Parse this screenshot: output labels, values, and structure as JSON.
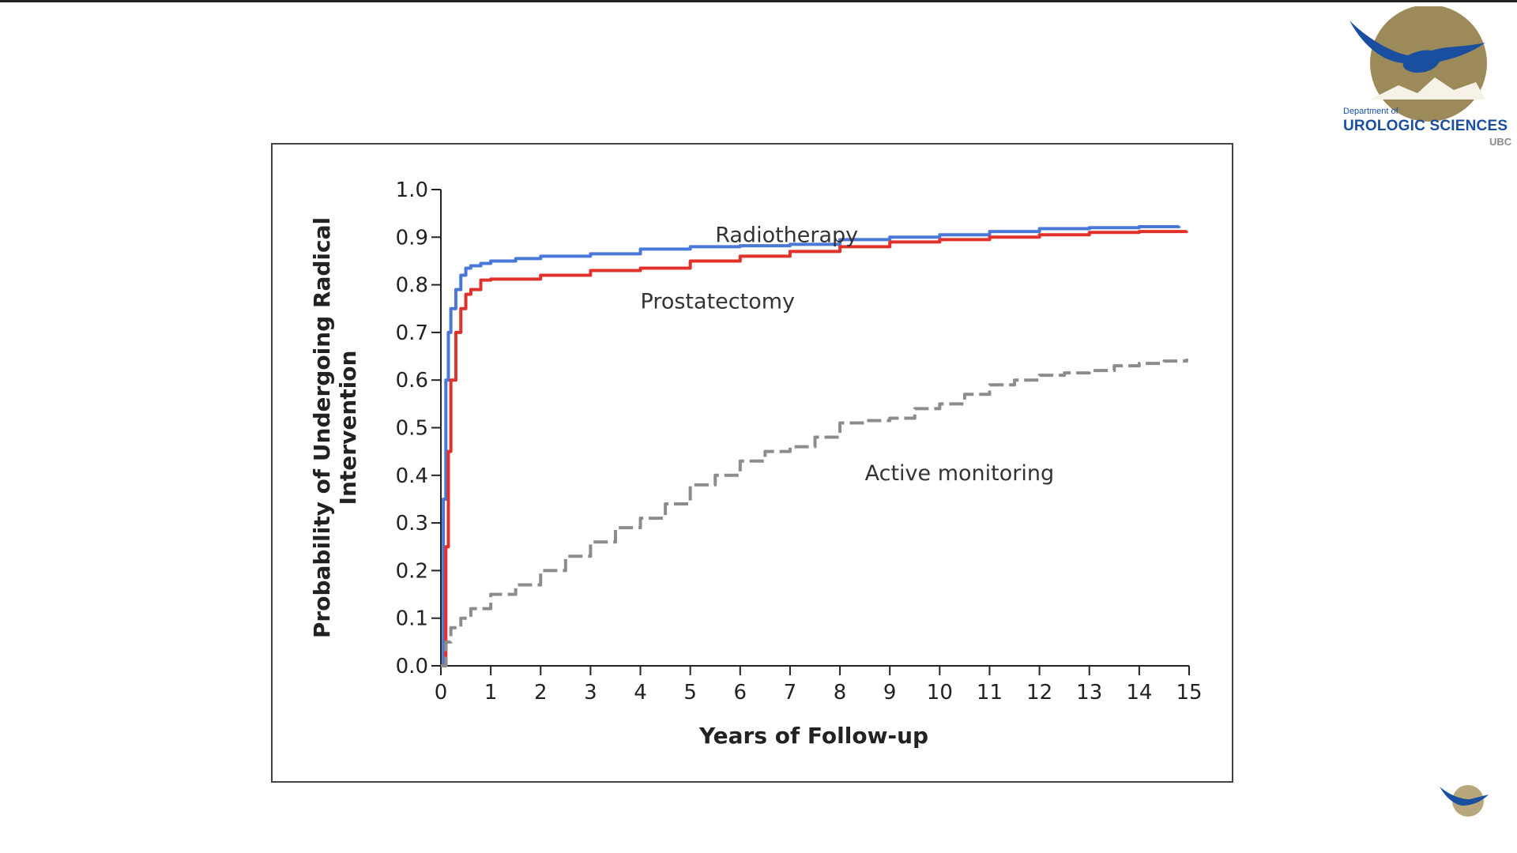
{
  "slide": {
    "logo": {
      "department": "Department of",
      "name": "UROLOGIC SCIENCES",
      "institution": "UBC",
      "colors": {
        "blue": "#1a4fa0",
        "gold": "#9c8a5a"
      },
      "icon": "eagle-icon"
    }
  },
  "chart_data": {
    "type": "line",
    "title": "",
    "xlabel": "Years of Follow-up",
    "ylabel": "Probability of Undergoing Radical Intervention",
    "xlim": [
      0,
      15
    ],
    "ylim": [
      0,
      1.0
    ],
    "x_ticks": [
      "0",
      "1",
      "2",
      "3",
      "4",
      "5",
      "6",
      "7",
      "8",
      "9",
      "10",
      "11",
      "12",
      "13",
      "14",
      "15"
    ],
    "y_ticks": [
      "0.0",
      "0.1",
      "0.2",
      "0.3",
      "0.4",
      "0.5",
      "0.6",
      "0.7",
      "0.8",
      "0.9",
      "1.0"
    ],
    "grid": false,
    "legend": "none",
    "series": [
      {
        "name": "Radiotherapy",
        "color": "#4a78d8",
        "style": "solid",
        "x": [
          0,
          0.05,
          0.1,
          0.15,
          0.2,
          0.3,
          0.4,
          0.5,
          0.6,
          0.8,
          1,
          1.5,
          2,
          3,
          4,
          5,
          6,
          7,
          8,
          9,
          10,
          11,
          12,
          13,
          14,
          14.8
        ],
        "y": [
          0,
          0.35,
          0.6,
          0.7,
          0.75,
          0.79,
          0.82,
          0.835,
          0.84,
          0.845,
          0.85,
          0.855,
          0.86,
          0.865,
          0.875,
          0.88,
          0.882,
          0.885,
          0.895,
          0.9,
          0.905,
          0.912,
          0.918,
          0.92,
          0.922,
          0.923
        ]
      },
      {
        "name": "Prostatectomy",
        "color": "#e0322a",
        "style": "solid",
        "x": [
          0,
          0.1,
          0.15,
          0.2,
          0.3,
          0.4,
          0.5,
          0.6,
          0.8,
          1,
          2,
          3,
          4,
          5,
          6,
          7,
          8,
          9,
          10,
          11,
          12,
          13,
          14,
          14.95
        ],
        "y": [
          0,
          0.25,
          0.45,
          0.6,
          0.7,
          0.75,
          0.78,
          0.79,
          0.81,
          0.812,
          0.82,
          0.83,
          0.835,
          0.85,
          0.86,
          0.87,
          0.88,
          0.89,
          0.895,
          0.9,
          0.905,
          0.91,
          0.912,
          0.913
        ]
      },
      {
        "name": "Active monitoring",
        "color": "#8c8c8c",
        "style": "dashed",
        "x": [
          0,
          0.1,
          0.2,
          0.4,
          0.6,
          1,
          1.5,
          2,
          2.5,
          3,
          3.5,
          4,
          4.5,
          5,
          5.5,
          6,
          6.5,
          7,
          7.5,
          8,
          8.5,
          9,
          9.5,
          10,
          10.5,
          11,
          11.5,
          12,
          12.5,
          13,
          13.5,
          14,
          14.5,
          14.95
        ],
        "y": [
          0,
          0.05,
          0.08,
          0.1,
          0.12,
          0.15,
          0.17,
          0.2,
          0.23,
          0.26,
          0.29,
          0.31,
          0.34,
          0.38,
          0.4,
          0.43,
          0.45,
          0.46,
          0.48,
          0.51,
          0.515,
          0.52,
          0.54,
          0.55,
          0.57,
          0.59,
          0.6,
          0.61,
          0.615,
          0.62,
          0.63,
          0.635,
          0.64,
          0.645
        ]
      }
    ],
    "annotations": [
      {
        "text": "Radiotherapy",
        "x": 5.5,
        "y": 0.905
      },
      {
        "text": "Prostatectomy",
        "x": 4,
        "y": 0.765
      },
      {
        "text": "Active monitoring",
        "x": 8.5,
        "y": 0.405
      }
    ]
  }
}
